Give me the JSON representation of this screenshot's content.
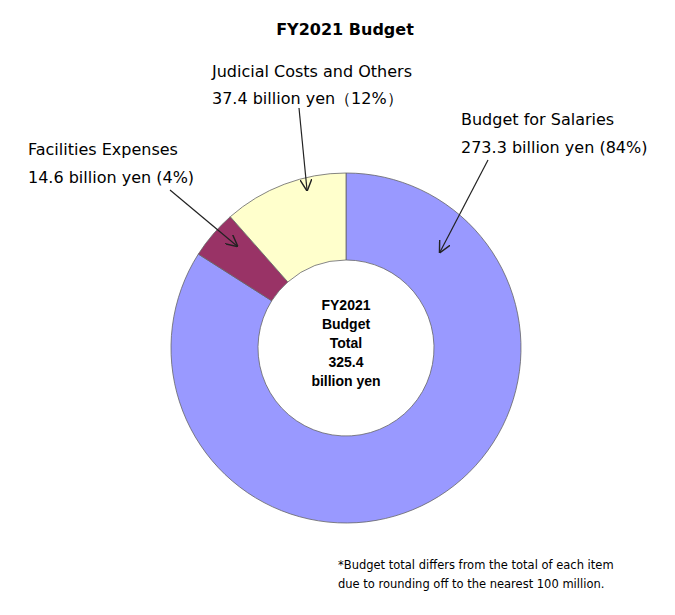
{
  "chart_data": {
    "type": "donut",
    "title": "FY2021 Budget",
    "categories": [
      "Budget for Salaries",
      "Facilities Expenses",
      "Judicial Costs and Others"
    ],
    "values": [
      273.3,
      14.6,
      37.4
    ],
    "value_labels": [
      "273.3 billion yen (84%)",
      "14.6 billion yen (4%)",
      "37.4 billion yen（12%）"
    ],
    "colors": [
      "#9999ff",
      "#993366",
      "#ffffcc"
    ],
    "center_text": [
      "FY2021",
      "Budget",
      "Total",
      "325.4",
      "billion yen"
    ],
    "note": [
      "*Budget total differs from the total of each item",
      "due to rounding off to the nearest 100 million."
    ]
  }
}
